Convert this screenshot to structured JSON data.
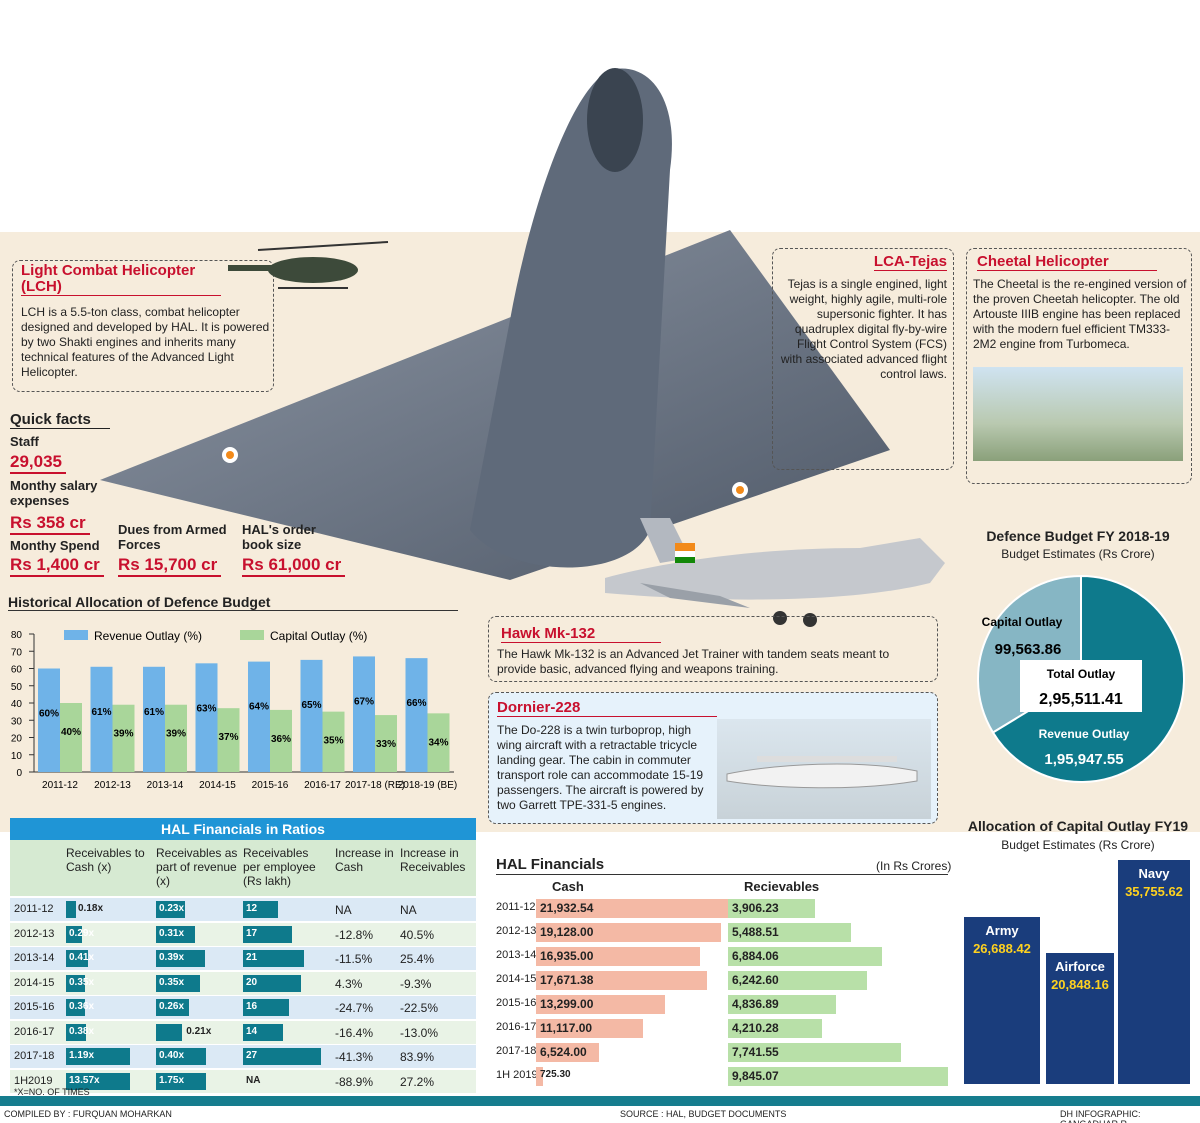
{
  "colors": {
    "accent_red": "#c8102e",
    "teal": "#0e7a8c",
    "blue_bar": "#6fb3e8",
    "green_bar": "#a9d69a",
    "navy": "#1a3d7c",
    "cash_bar": "#f4b9a5",
    "recv_bar": "#b8e0a8",
    "footer": "#167d8e"
  },
  "lch": {
    "title": "Light Combat Helicopter (LCH)",
    "text": "LCH is a 5.5-ton class, combat helicopter designed and developed by HAL. It is powered by two Shakti engines and inherits many technical features of the Advanced Light Helicopter."
  },
  "tejas": {
    "title": "LCA-Tejas",
    "text": "Tejas is a single engined, light weight, highly agile, multi-role supersonic fighter. It has quadruplex digital fly-by-wire Flight Control System (FCS) with associated advanced flight control laws."
  },
  "cheetal": {
    "title": "Cheetal Helicopter",
    "text": "The Cheetal is the re-engined version of the proven Cheetah helicopter. The old Artouste IIIB engine has been replaced with the modern fuel efficient TM333-2M2 engine from Turbomeca."
  },
  "hawk": {
    "title": "Hawk Mk-132",
    "text": "The Hawk Mk-132 is an Advanced Jet Trainer with tandem seats meant to provide basic, advanced flying and weapons training."
  },
  "dornier": {
    "title": "Dornier-228",
    "text": "The Do-228 is a twin turboprop, high wing aircraft with a retractable tricycle landing gear. The cabin in commuter transport role can accommodate 15-19 passengers. The aircraft is powered by two Garrett TPE-331-5 engines."
  },
  "quick_facts": {
    "title": "Quick facts",
    "staff_label": "Staff",
    "staff_value": "29,035",
    "salary_label": "Monthy salary expenses",
    "salary_value": "Rs 358 cr",
    "spend_label": "Monthy Spend",
    "spend_value": "Rs 1,400 cr",
    "dues_label": "Dues from Armed Forces",
    "dues_value": "Rs 15,700 cr",
    "order_label": "HAL's order book size",
    "order_value": "Rs 61,000 cr"
  },
  "chart_data": [
    {
      "type": "bar",
      "title": "Historical Allocation of Defence Budget",
      "categories": [
        "2011-12",
        "2012-13",
        "2013-14",
        "2014-15",
        "2015-16",
        "2016-17",
        "2017-18 (RE)",
        "2018-19 (BE)"
      ],
      "series": [
        {
          "name": "Revenue Outlay (%)",
          "values": [
            60,
            61,
            61,
            63,
            64,
            65,
            67,
            66
          ],
          "labels": [
            "60%",
            "61%",
            "61%",
            "63%",
            "64%",
            "65%",
            "67%",
            "66%"
          ]
        },
        {
          "name": "Capital Outlay (%)",
          "values": [
            40,
            39,
            39,
            37,
            36,
            35,
            33,
            34
          ],
          "labels": [
            "40%",
            "39%",
            "39%",
            "37%",
            "36%",
            "35%",
            "33%",
            "34%"
          ]
        }
      ],
      "ylim": [
        0,
        80
      ],
      "yticks": [
        "80",
        "70",
        "60",
        "50",
        "40",
        "30",
        "20",
        "10",
        "0"
      ]
    },
    {
      "type": "pie",
      "title": "Defence Budget FY 2018-19",
      "subtitle": "Budget Estimates (Rs Crore)",
      "slices": [
        {
          "name": "Capital Outlay",
          "value": 99563.86,
          "label": "99,563.86"
        },
        {
          "name": "Revenue Outlay",
          "value": 195947.55,
          "label": "1,95,947.55"
        }
      ],
      "center_label": "Total Outlay",
      "center_value": "2,95,511.41"
    },
    {
      "type": "bar",
      "title": "Allocation of Capital Outlay FY19",
      "subtitle": "Budget Estimates (Rs Crore)",
      "categories": [
        "Army",
        "Airforce",
        "Navy"
      ],
      "values": [
        26688.42,
        20848.16,
        35755.62
      ],
      "labels": [
        "26,688.42",
        "20,848.16",
        "35,755.62"
      ]
    },
    {
      "type": "bar",
      "title": "HAL Financials",
      "unit": "(In Rs Crores)",
      "categories": [
        "2011-12",
        "2012-13",
        "2013-14",
        "2014-15",
        "2015-16",
        "2016-17",
        "2017-18",
        "1H 2019"
      ],
      "series": [
        {
          "name": "Cash",
          "values": [
            21932.54,
            19128.0,
            16935.0,
            17671.38,
            13299.0,
            11117.0,
            6524.0,
            725.3
          ],
          "labels": [
            "21,932.54",
            "19,128.00",
            "16,935.00",
            "17,671.38",
            "13,299.00",
            "11,117.00",
            "6,524.00",
            "725.30"
          ]
        },
        {
          "name": "Recievables",
          "values": [
            3906.23,
            5488.51,
            6884.06,
            6242.6,
            4836.89,
            4210.28,
            7741.55,
            9845.07
          ],
          "labels": [
            "3,906.23",
            "5,488.51",
            "6,884.06",
            "6,242.60",
            "4,836.89",
            "4,210.28",
            "7,741.55",
            "9,845.07"
          ]
        }
      ]
    },
    {
      "type": "table",
      "title": "HAL Financials in Ratios",
      "headers": [
        "Receivables to Cash (x)",
        "Receivables as part of revenue (x)",
        "Receivables per employee (Rs lakh)",
        "Increase in Cash",
        "Increase in Receivables"
      ],
      "rows": [
        {
          "year": "2011-12",
          "rc": "0.18x",
          "rc_v": 0.18,
          "rr": "0.23x",
          "rr_v": 0.23,
          "re": "12",
          "re_v": 12,
          "ic": "NA",
          "ir": "NA"
        },
        {
          "year": "2012-13",
          "rc": "0.29x",
          "rc_v": 0.29,
          "rr": "0.31x",
          "rr_v": 0.31,
          "re": "17",
          "re_v": 17,
          "ic": "-12.8%",
          "ir": "40.5%"
        },
        {
          "year": "2013-14",
          "rc": "0.41x",
          "rc_v": 0.41,
          "rr": "0.39x",
          "rr_v": 0.39,
          "re": "21",
          "re_v": 21,
          "ic": "-11.5%",
          "ir": "25.4%"
        },
        {
          "year": "2014-15",
          "rc": "0.35x",
          "rc_v": 0.35,
          "rr": "0.35x",
          "rr_v": 0.35,
          "re": "20",
          "re_v": 20,
          "ic": "4.3%",
          "ir": "-9.3%"
        },
        {
          "year": "2015-16",
          "rc": "0.36x",
          "rc_v": 0.36,
          "rr": "0.26x",
          "rr_v": 0.26,
          "re": "16",
          "re_v": 16,
          "ic": "-24.7%",
          "ir": "-22.5%"
        },
        {
          "year": "2016-17",
          "rc": "0.38x",
          "rc_v": 0.38,
          "rr": "0.21x",
          "rr_v": 0.21,
          "re": "14",
          "re_v": 14,
          "ic": "-16.4%",
          "ir": "-13.0%"
        },
        {
          "year": "2017-18",
          "rc": "1.19x",
          "rc_v": 1.19,
          "rr": "0.40x",
          "rr_v": 0.4,
          "re": "27",
          "re_v": 27,
          "ic": "-41.3%",
          "ir": "83.9%"
        },
        {
          "year": "1H2019",
          "rc": "13.57x",
          "rc_v": 13.57,
          "rr": "1.75x",
          "rr_v": 1.75,
          "re": "NA",
          "re_v": null,
          "ic": "-88.9%",
          "ir": "27.2%"
        }
      ],
      "footnote": "*X=NO. OF TIMES"
    }
  ],
  "footer": {
    "compiled": "COMPILED BY : FURQUAN MOHARKAN",
    "source": "SOURCE : HAL, BUDGET DOCUMENTS",
    "credit": "DH INFOGRAPHIC: GANGADHAR R"
  }
}
